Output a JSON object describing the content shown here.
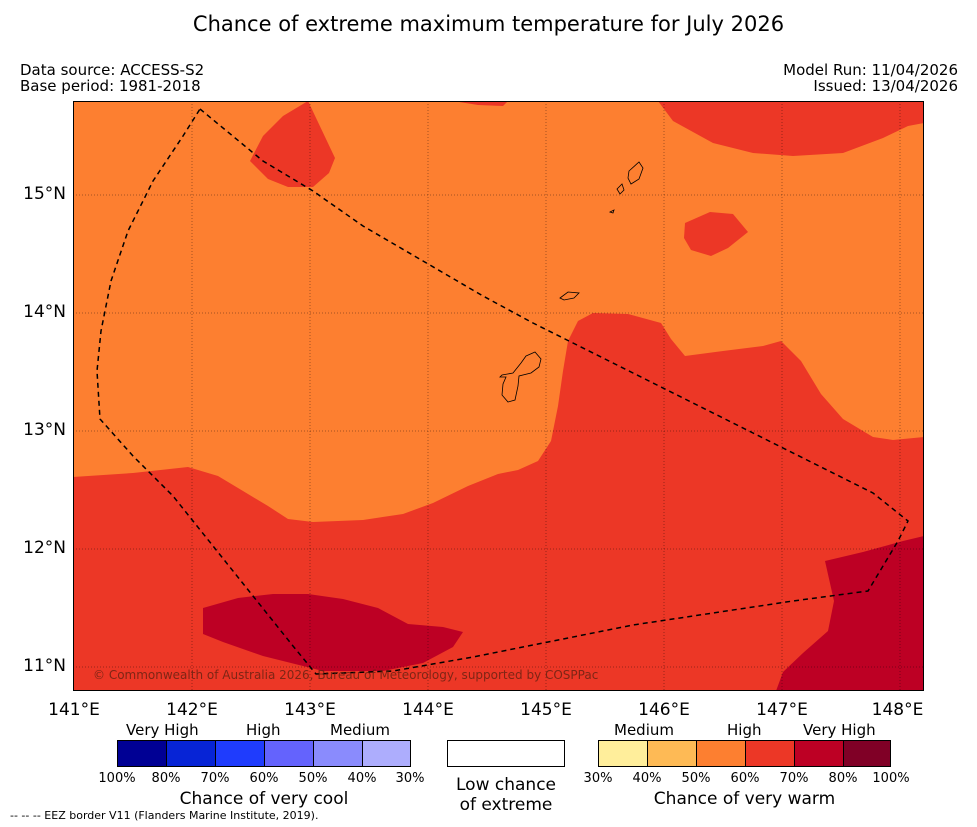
{
  "title": "Chance of extreme maximum temperature for July 2026",
  "meta": {
    "data_source": "Data source: ACCESS-S2",
    "base_period": "Base period: 1981-2018",
    "model_run": "Model Run: 11/04/2026",
    "issued": "Issued: 13/04/2026"
  },
  "map": {
    "lat_labels": [
      "15°N",
      "14°N",
      "13°N",
      "12°N",
      "11°N"
    ],
    "lon_labels": [
      "141°E",
      "142°E",
      "143°E",
      "144°E",
      "145°E",
      "146°E",
      "147°E",
      "148°E"
    ],
    "copyright": "© Commonwealth of Australia 2026, Bureau of Meteorology, supported by COSPPac",
    "colors": {
      "band_50_60": "#fd7f30",
      "band_60_70": "#ec3726",
      "band_70_80": "#bd0024",
      "background": "#fd7f30"
    }
  },
  "legend": {
    "cool": {
      "categories": [
        "Very High",
        "High",
        "Medium"
      ],
      "percentages": [
        "100%",
        "80%",
        "70%",
        "60%",
        "50%",
        "40%",
        "30%"
      ],
      "colors": [
        "#000094",
        "#0724d6",
        "#1f3cfd",
        "#6463fd",
        "#8a8bfd",
        "#adadfd"
      ],
      "title": "Chance of very cool"
    },
    "neutral": {
      "title_line1": "Low chance",
      "title_line2": "of extreme"
    },
    "warm": {
      "categories": [
        "Medium",
        "High",
        "Very High"
      ],
      "percentages": [
        "30%",
        "40%",
        "50%",
        "60%",
        "70%",
        "80%",
        "100%"
      ],
      "colors": [
        "#ffee9b",
        "#feba55",
        "#fd7f30",
        "#ec3726",
        "#bd0024",
        "#800026"
      ],
      "title": "Chance of very warm"
    }
  },
  "footnote": "--  --  -- EEZ border V11 (Flanders Marine Institute, 2019)."
}
